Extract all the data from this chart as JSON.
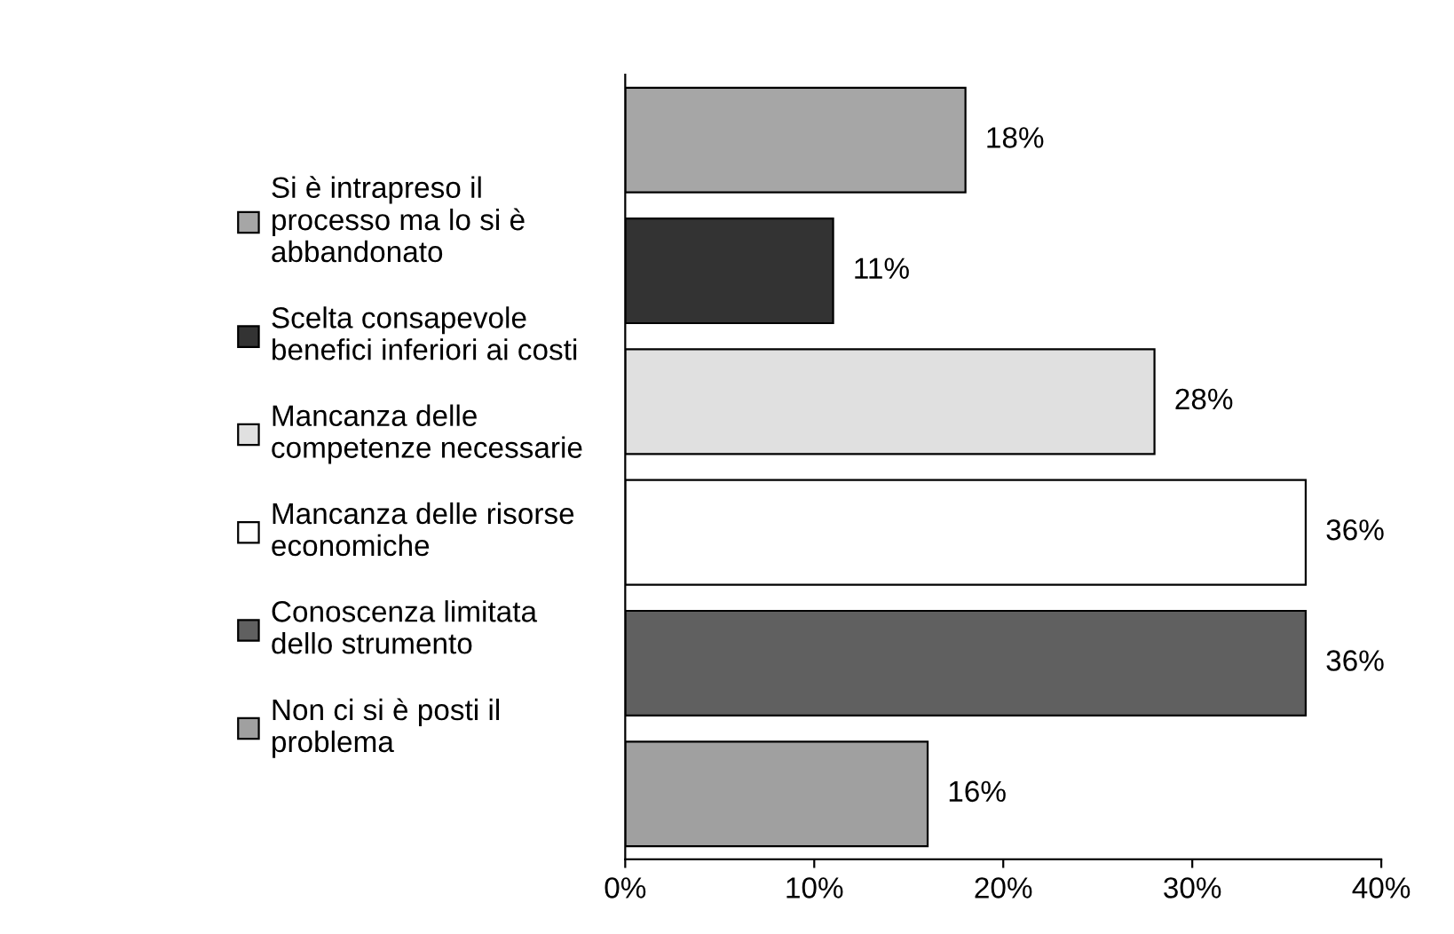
{
  "chart_data": {
    "type": "bar",
    "orientation": "horizontal",
    "categories": [
      null,
      null,
      null,
      null,
      null,
      null
    ],
    "series": [
      {
        "name": "Si è intrapreso il\nprocesso ma lo si è\nabbandonato",
        "color": "#a6a6a6",
        "values": [
          18,
          null,
          null,
          null,
          null,
          null
        ],
        "value_labels": [
          "18%",
          null,
          null,
          null,
          null,
          null
        ]
      },
      {
        "name": "Scelta consapevole\nbenefici inferiori ai costi",
        "color": "#333333",
        "values": [
          null,
          11,
          null,
          null,
          null,
          null
        ],
        "value_labels": [
          null,
          "11%",
          null,
          null,
          null,
          null
        ]
      },
      {
        "name": "Mancanza delle\ncompetenze necessarie",
        "color": "#e0e0e0",
        "values": [
          null,
          null,
          28,
          null,
          null,
          null
        ],
        "value_labels": [
          null,
          null,
          "28%",
          null,
          null,
          null
        ]
      },
      {
        "name": "Mancanza delle risorse\neconomiche",
        "color": "#ffffff",
        "values": [
          null,
          null,
          null,
          36,
          null,
          null
        ],
        "value_labels": [
          null,
          null,
          null,
          "36%",
          null,
          null
        ]
      },
      {
        "name": "Conoscenza limitata\ndello strumento",
        "color": "#606060",
        "values": [
          null,
          null,
          null,
          null,
          36,
          null
        ],
        "value_labels": [
          null,
          null,
          null,
          null,
          "36%",
          null
        ]
      },
      {
        "name": "Non ci si è posti il\nproblema",
        "color": "#a0a0a0",
        "values": [
          null,
          null,
          null,
          null,
          null,
          16
        ],
        "value_labels": [
          null,
          null,
          null,
          null,
          null,
          "16%"
        ]
      }
    ],
    "xlim": [
      0,
      40
    ],
    "xticks": [
      {
        "value": 0,
        "label": "0%"
      },
      {
        "value": 10,
        "label": "10%"
      },
      {
        "value": 20,
        "label": "20%"
      },
      {
        "value": 30,
        "label": "30%"
      },
      {
        "value": 40,
        "label": "40%"
      }
    ],
    "grid": false,
    "legend": "left"
  }
}
